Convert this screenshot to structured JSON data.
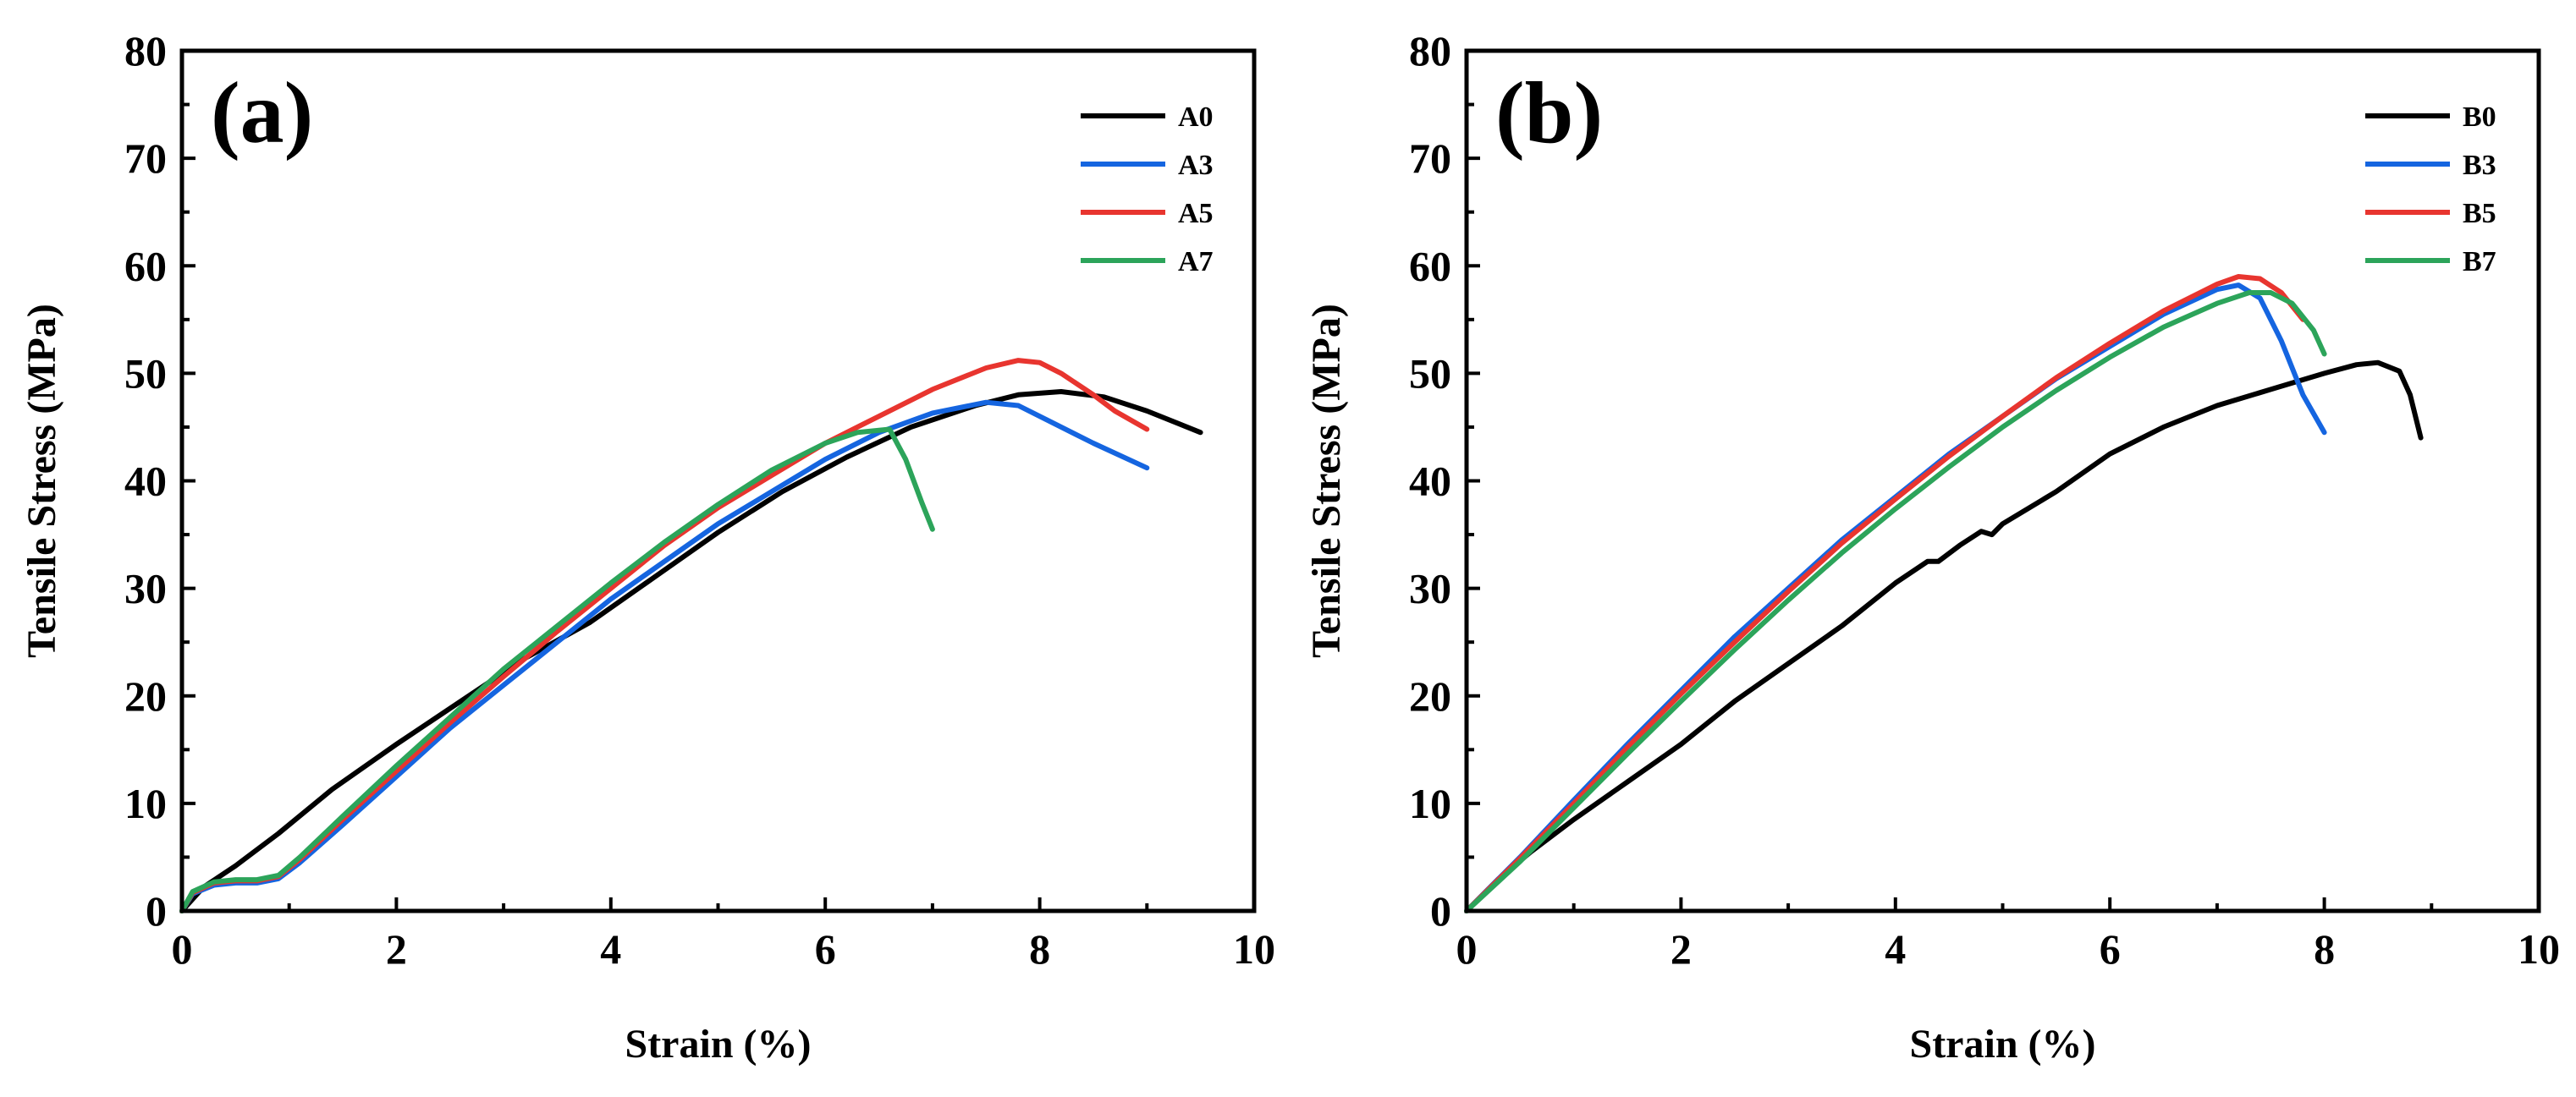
{
  "chart_data": [
    {
      "type": "line",
      "panel_label": "(a)",
      "xlabel": "Strain (%)",
      "ylabel": "Tensile Stress (MPa)",
      "xlim": [
        0,
        10
      ],
      "ylim": [
        0,
        80
      ],
      "xticks": [
        0,
        2,
        4,
        6,
        8,
        10
      ],
      "yticks": [
        0,
        10,
        20,
        30,
        40,
        50,
        60,
        70,
        80
      ],
      "legend_position": "top-right",
      "grid": false,
      "series": [
        {
          "name": "A0",
          "color": "#000000",
          "x": [
            0,
            0.2,
            0.5,
            0.9,
            1.4,
            2,
            2.6,
            3.2,
            3.8,
            4.4,
            5,
            5.6,
            6.2,
            6.8,
            7.4,
            7.8,
            8.2,
            8.6,
            9.0,
            9.5
          ],
          "y": [
            0,
            2.2,
            4.2,
            7.2,
            11.3,
            15.5,
            19.5,
            23.5,
            26.8,
            31.0,
            35.2,
            39.0,
            42.2,
            45.0,
            47.0,
            48.0,
            48.3,
            47.8,
            46.5,
            44.5
          ]
        },
        {
          "name": "A3",
          "color": "#1565e0",
          "x": [
            0,
            0.1,
            0.3,
            0.5,
            0.7,
            0.9,
            1.1,
            1.5,
            2,
            2.5,
            3,
            3.5,
            4,
            4.5,
            5,
            5.5,
            6,
            6.5,
            7,
            7.5,
            7.8,
            8.1,
            8.5,
            9.0
          ],
          "y": [
            0,
            1.6,
            2.4,
            2.6,
            2.6,
            3.0,
            4.5,
            8.0,
            12.5,
            17.0,
            21.0,
            25.0,
            29.0,
            32.5,
            36.0,
            39.0,
            42.0,
            44.5,
            46.3,
            47.3,
            47.0,
            45.5,
            43.5,
            41.2
          ]
        },
        {
          "name": "A5",
          "color": "#e8352f",
          "x": [
            0,
            0.1,
            0.3,
            0.5,
            0.7,
            0.9,
            1.1,
            1.5,
            2,
            2.5,
            3,
            3.5,
            4,
            4.5,
            5,
            5.5,
            6,
            6.5,
            7,
            7.5,
            7.8,
            8.0,
            8.2,
            8.5,
            8.7,
            9.0
          ],
          "y": [
            0,
            1.7,
            2.6,
            2.8,
            2.8,
            3.2,
            4.8,
            8.5,
            13.0,
            17.5,
            21.8,
            26.0,
            30.0,
            34.0,
            37.5,
            40.5,
            43.5,
            46.0,
            48.5,
            50.5,
            51.2,
            51.0,
            50.0,
            48.0,
            46.5,
            44.8
          ]
        },
        {
          "name": "A7",
          "color": "#2ca45a",
          "x": [
            0,
            0.1,
            0.3,
            0.5,
            0.7,
            0.9,
            1.1,
            1.5,
            2,
            2.5,
            3,
            3.5,
            4,
            4.5,
            5,
            5.5,
            6,
            6.3,
            6.6,
            6.75,
            6.9,
            7.0
          ],
          "y": [
            0,
            1.8,
            2.7,
            2.9,
            2.9,
            3.3,
            5.0,
            8.8,
            13.5,
            18.0,
            22.5,
            26.5,
            30.5,
            34.3,
            37.8,
            41.0,
            43.5,
            44.5,
            44.8,
            42.0,
            38.0,
            35.5
          ]
        }
      ]
    },
    {
      "type": "line",
      "panel_label": "(b)",
      "xlabel": "Strain (%)",
      "ylabel": "Tensile Stress (MPa)",
      "xlim": [
        0,
        10
      ],
      "ylim": [
        0,
        80
      ],
      "xticks": [
        0,
        2,
        4,
        6,
        8,
        10
      ],
      "yticks": [
        0,
        10,
        20,
        30,
        40,
        50,
        60,
        70,
        80
      ],
      "legend_position": "top-right",
      "grid": false,
      "series": [
        {
          "name": "B0",
          "color": "#000000",
          "x": [
            0,
            0.3,
            0.6,
            1.0,
            1.5,
            2,
            2.5,
            3,
            3.5,
            4,
            4.3,
            4.4,
            4.6,
            4.8,
            4.9,
            5.0,
            5.5,
            6,
            6.5,
            7,
            7.5,
            8,
            8.3,
            8.5,
            8.7,
            8.8,
            8.9
          ],
          "y": [
            0,
            3.0,
            5.5,
            8.5,
            12.0,
            15.5,
            19.5,
            23.0,
            26.5,
            30.5,
            32.5,
            32.5,
            34.0,
            35.3,
            35.0,
            36.0,
            39.0,
            42.5,
            45.0,
            47.0,
            48.5,
            50.0,
            50.8,
            51.0,
            50.2,
            48.0,
            44.0
          ]
        },
        {
          "name": "B3",
          "color": "#1565e0",
          "x": [
            0,
            0.5,
            1,
            1.5,
            2,
            2.5,
            3,
            3.5,
            4,
            4.5,
            5,
            5.5,
            6,
            6.5,
            7,
            7.2,
            7.4,
            7.6,
            7.8,
            8.0
          ],
          "y": [
            0,
            5.0,
            10.3,
            15.5,
            20.5,
            25.5,
            30.0,
            34.5,
            38.5,
            42.5,
            46.0,
            49.5,
            52.5,
            55.5,
            57.8,
            58.2,
            57.0,
            53.0,
            48.0,
            44.5
          ]
        },
        {
          "name": "B5",
          "color": "#e8352f",
          "x": [
            0,
            0.5,
            1,
            1.5,
            2,
            2.5,
            3,
            3.5,
            4,
            4.5,
            5,
            5.5,
            6,
            6.5,
            7,
            7.2,
            7.4,
            7.6,
            7.8
          ],
          "y": [
            0,
            4.9,
            10.0,
            15.2,
            20.2,
            25.0,
            29.7,
            34.2,
            38.3,
            42.3,
            46.0,
            49.6,
            52.8,
            55.8,
            58.3,
            59.0,
            58.8,
            57.5,
            55.0
          ]
        },
        {
          "name": "B7",
          "color": "#2ca45a",
          "x": [
            0,
            0.5,
            1,
            1.5,
            2,
            2.5,
            3,
            3.5,
            4,
            4.5,
            5,
            5.5,
            6,
            6.5,
            7,
            7.3,
            7.5,
            7.7,
            7.9,
            8.0
          ],
          "y": [
            0,
            4.6,
            9.6,
            14.6,
            19.5,
            24.3,
            28.9,
            33.3,
            37.4,
            41.3,
            45.0,
            48.4,
            51.5,
            54.3,
            56.5,
            57.5,
            57.5,
            56.5,
            54.0,
            51.8
          ]
        }
      ]
    }
  ]
}
